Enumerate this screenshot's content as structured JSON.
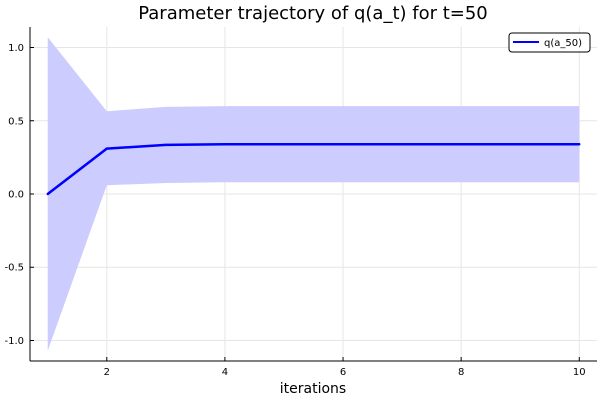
{
  "chart_data": {
    "type": "line",
    "title": "Parameter trajectory of q(a_t) for t=50",
    "xlabel": "iterations",
    "ylabel": "",
    "xlim": [
      0.7,
      10.3
    ],
    "ylim": [
      -1.14,
      1.14
    ],
    "x_ticks": [
      2,
      4,
      6,
      8,
      10
    ],
    "x_tick_labels": [
      "2",
      "4",
      "6",
      "8",
      "10"
    ],
    "y_ticks": [
      -1.0,
      -0.5,
      0.0,
      0.5,
      1.0
    ],
    "y_tick_labels": [
      "-1.0",
      "-0.5",
      "0.0",
      "0.5",
      "1.0"
    ],
    "grid": true,
    "legend_position": "top-right",
    "series": [
      {
        "name": "q(a_50)",
        "color": "#0000ff",
        "band_color": "#ccccff",
        "x": [
          1,
          2,
          3,
          4,
          5,
          6,
          7,
          8,
          9,
          10
        ],
        "values": [
          0.0,
          0.31,
          0.335,
          0.34,
          0.34,
          0.34,
          0.34,
          0.34,
          0.34,
          0.34
        ],
        "lower": [
          -1.07,
          0.06,
          0.075,
          0.08,
          0.08,
          0.08,
          0.08,
          0.08,
          0.08,
          0.08
        ],
        "upper": [
          1.07,
          0.565,
          0.595,
          0.6,
          0.6,
          0.6,
          0.6,
          0.6,
          0.6,
          0.6
        ]
      }
    ]
  }
}
